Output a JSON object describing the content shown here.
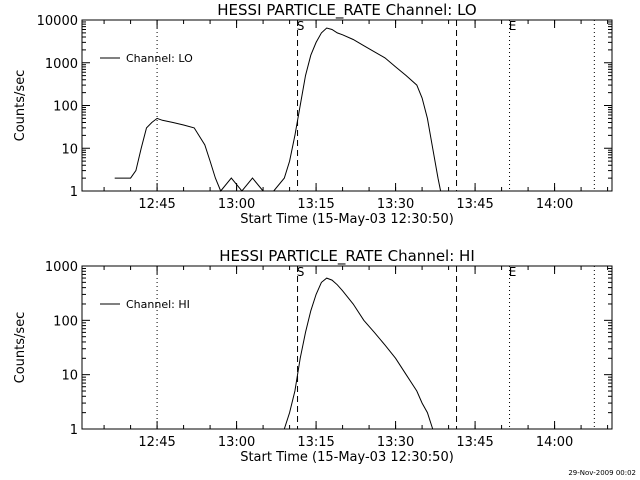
{
  "chart_data": [
    {
      "type": "line",
      "title": "HESSI PARTICLE_RATE Channel: LO",
      "xlabel": "Start Time (15-May-03 12:30:50)",
      "ylabel": "Counts/sec",
      "yscale": "log",
      "ylim": [
        1,
        10000
      ],
      "xlim": [
        "12:30:50",
        "14:10:50"
      ],
      "yticks": [
        "1",
        "10",
        "100",
        "1000",
        "10000"
      ],
      "xticks": [
        "12:45",
        "13:00",
        "13:15",
        "13:30",
        "13:45",
        "14:00"
      ],
      "legend": {
        "position": "top-left",
        "entries": [
          "Channel: LO"
        ]
      },
      "grid": false,
      "markers": [
        {
          "label": "S",
          "style": "dashed",
          "time": "13:11:30"
        },
        {
          "label": "",
          "style": "dashed",
          "time": "13:41:30"
        },
        {
          "label": "E",
          "style": "dotted",
          "time": "13:51:30"
        },
        {
          "label": "",
          "style": "dotted",
          "time": "12:45:00"
        },
        {
          "label": "",
          "style": "dotted",
          "time": "14:07:30"
        }
      ],
      "series": [
        {
          "name": "Channel: LO",
          "points": [
            [
              "12:37:00",
              2
            ],
            [
              "12:40:00",
              2
            ],
            [
              "12:41:00",
              3
            ],
            [
              "12:42:00",
              10
            ],
            [
              "12:43:00",
              30
            ],
            [
              "12:44:00",
              40
            ],
            [
              "12:45:00",
              50
            ],
            [
              "12:46:00",
              45
            ],
            [
              "12:48:00",
              40
            ],
            [
              "12:50:00",
              35
            ],
            [
              "12:52:00",
              30
            ],
            [
              "12:54:00",
              12
            ],
            [
              "12:55:00",
              5
            ],
            [
              "12:56:00",
              2
            ],
            [
              "12:57:00",
              1
            ],
            [
              "12:59:00",
              2
            ],
            [
              "13:01:00",
              1
            ],
            [
              "13:03:00",
              2
            ],
            [
              "13:05:00",
              1
            ],
            [
              "13:07:00",
              1
            ],
            [
              "13:09:00",
              2
            ],
            [
              "13:10:00",
              5
            ],
            [
              "13:11:00",
              20
            ],
            [
              "13:12:00",
              100
            ],
            [
              "13:13:00",
              500
            ],
            [
              "13:14:00",
              1500
            ],
            [
              "13:15:00",
              3000
            ],
            [
              "13:16:00",
              5000
            ],
            [
              "13:17:00",
              6500
            ],
            [
              "13:18:00",
              6000
            ],
            [
              "13:19:00",
              5000
            ],
            [
              "13:20:00",
              4500
            ],
            [
              "13:22:00",
              3500
            ],
            [
              "13:24:00",
              2500
            ],
            [
              "13:26:00",
              1800
            ],
            [
              "13:28:00",
              1300
            ],
            [
              "13:30:00",
              800
            ],
            [
              "13:32:00",
              500
            ],
            [
              "13:34:00",
              300
            ],
            [
              "13:35:00",
              150
            ],
            [
              "13:36:00",
              50
            ],
            [
              "13:37:00",
              10
            ],
            [
              "13:38:00",
              2
            ],
            [
              "13:38:30",
              1
            ]
          ]
        }
      ]
    },
    {
      "type": "line",
      "title": "HESSI PARTICLE_RATE Channel: HI",
      "xlabel": "Start Time (15-May-03 12:30:50)",
      "ylabel": "Counts/sec",
      "yscale": "log",
      "ylim": [
        1,
        1000
      ],
      "xlim": [
        "12:30:50",
        "14:10:50"
      ],
      "yticks": [
        "1",
        "10",
        "100",
        "1000"
      ],
      "xticks": [
        "12:45",
        "13:00",
        "13:15",
        "13:30",
        "13:45",
        "14:00"
      ],
      "legend": {
        "position": "top-left",
        "entries": [
          "Channel: HI"
        ]
      },
      "grid": false,
      "markers": [
        {
          "label": "S",
          "style": "dashed",
          "time": "13:11:30"
        },
        {
          "label": "",
          "style": "dashed",
          "time": "13:41:30"
        },
        {
          "label": "E",
          "style": "dotted",
          "time": "13:51:30"
        },
        {
          "label": "",
          "style": "dotted",
          "time": "12:45:00"
        },
        {
          "label": "",
          "style": "dotted",
          "time": "14:07:30"
        }
      ],
      "series": [
        {
          "name": "Channel: HI",
          "points": [
            [
              "13:09:00",
              1
            ],
            [
              "13:10:00",
              2
            ],
            [
              "13:11:00",
              5
            ],
            [
              "13:12:00",
              20
            ],
            [
              "13:13:00",
              60
            ],
            [
              "13:14:00",
              150
            ],
            [
              "13:15:00",
              300
            ],
            [
              "13:16:00",
              500
            ],
            [
              "13:17:00",
              600
            ],
            [
              "13:18:00",
              550
            ],
            [
              "13:19:00",
              450
            ],
            [
              "13:20:00",
              350
            ],
            [
              "13:22:00",
              200
            ],
            [
              "13:24:00",
              100
            ],
            [
              "13:26:00",
              60
            ],
            [
              "13:28:00",
              35
            ],
            [
              "13:30:00",
              20
            ],
            [
              "13:32:00",
              10
            ],
            [
              "13:34:00",
              5
            ],
            [
              "13:35:00",
              3
            ],
            [
              "13:36:00",
              2
            ],
            [
              "13:37:00",
              1
            ]
          ]
        }
      ]
    }
  ],
  "footer": {
    "timestamp": "29-Nov-2009 00:02"
  }
}
